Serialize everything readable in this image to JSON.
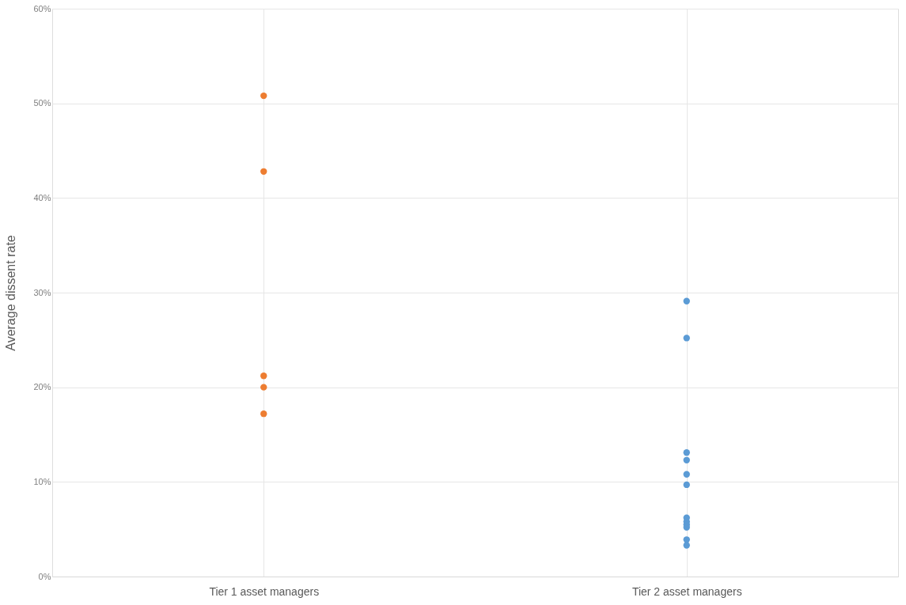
{
  "chart_data": {
    "type": "scatter",
    "ylabel": "Average dissent rate",
    "categories": [
      "Tier 1 asset managers",
      "Tier 2 asset managers"
    ],
    "series": [
      {
        "color": "#ed7d31",
        "x": [
          "Tier 1 asset managers",
          "Tier 1 asset managers",
          "Tier 1 asset managers",
          "Tier 1 asset managers",
          "Tier 1 asset managers"
        ],
        "values": [
          50.8,
          42.8,
          21.2,
          20.0,
          17.2
        ]
      },
      {
        "color": "#5b9bd5",
        "x": [
          "Tier 2 asset managers",
          "Tier 2 asset managers",
          "Tier 2 asset managers",
          "Tier 2 asset managers",
          "Tier 2 asset managers",
          "Tier 2 asset managers",
          "Tier 2 asset managers",
          "Tier 2 asset managers",
          "Tier 2 asset managers",
          "Tier 2 asset managers",
          "Tier 2 asset managers",
          "Tier 2 asset managers"
        ],
        "values": [
          29.1,
          25.2,
          13.1,
          12.3,
          10.8,
          9.7,
          6.2,
          5.8,
          5.5,
          5.2,
          3.9,
          3.3
        ]
      }
    ],
    "ylim": [
      0,
      60
    ],
    "yticks": [
      {
        "value": 0,
        "label": "0%"
      },
      {
        "value": 10,
        "label": "10%"
      },
      {
        "value": 20,
        "label": "20%"
      },
      {
        "value": 30,
        "label": "30%"
      },
      {
        "value": 40,
        "label": "40%"
      },
      {
        "value": 50,
        "label": "50%"
      },
      {
        "value": 60,
        "label": "60%"
      }
    ],
    "grid": true,
    "marker": "circle",
    "legend": false
  }
}
